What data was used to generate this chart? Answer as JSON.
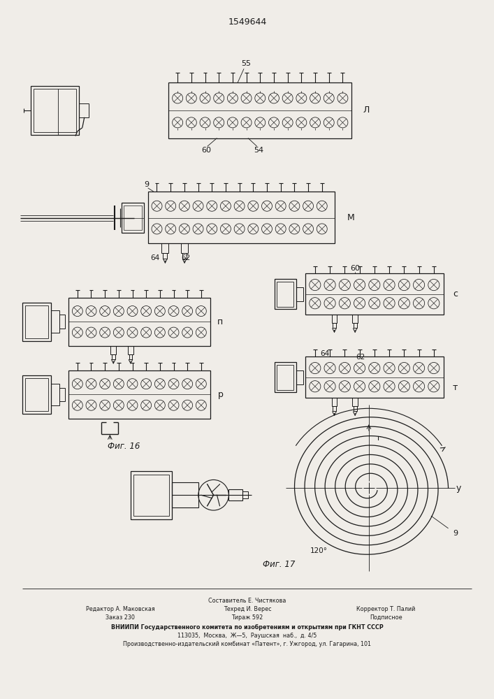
{
  "patent_number": "1549644",
  "fig16_label": "Фиг. 16",
  "fig17_label": "Фиг. 17",
  "bg_color": "#f0ede8",
  "line_color": "#1a1a1a",
  "footer": {
    "line1_center": "Составитель Е. Чистякова",
    "line2_left": "Редактор А. Маковская",
    "line2_center": "Техред И. Верес",
    "line2_right": "Корректор Т. Палий",
    "line3_left": "Заказ 230",
    "line3_center": "Тираж 592",
    "line3_right": "Подписное",
    "line4": "ВНИИПИ Государственного комитета по изобретениям и открытиям при ГКНТ СССР",
    "line5": "113035,  Москва,  Ж—5,  Раушская  наб.,  д. 4/5",
    "line6": "Производственно-издательский комбинат «Патент», г. Ужгород, ул. Гагарина, 101"
  }
}
